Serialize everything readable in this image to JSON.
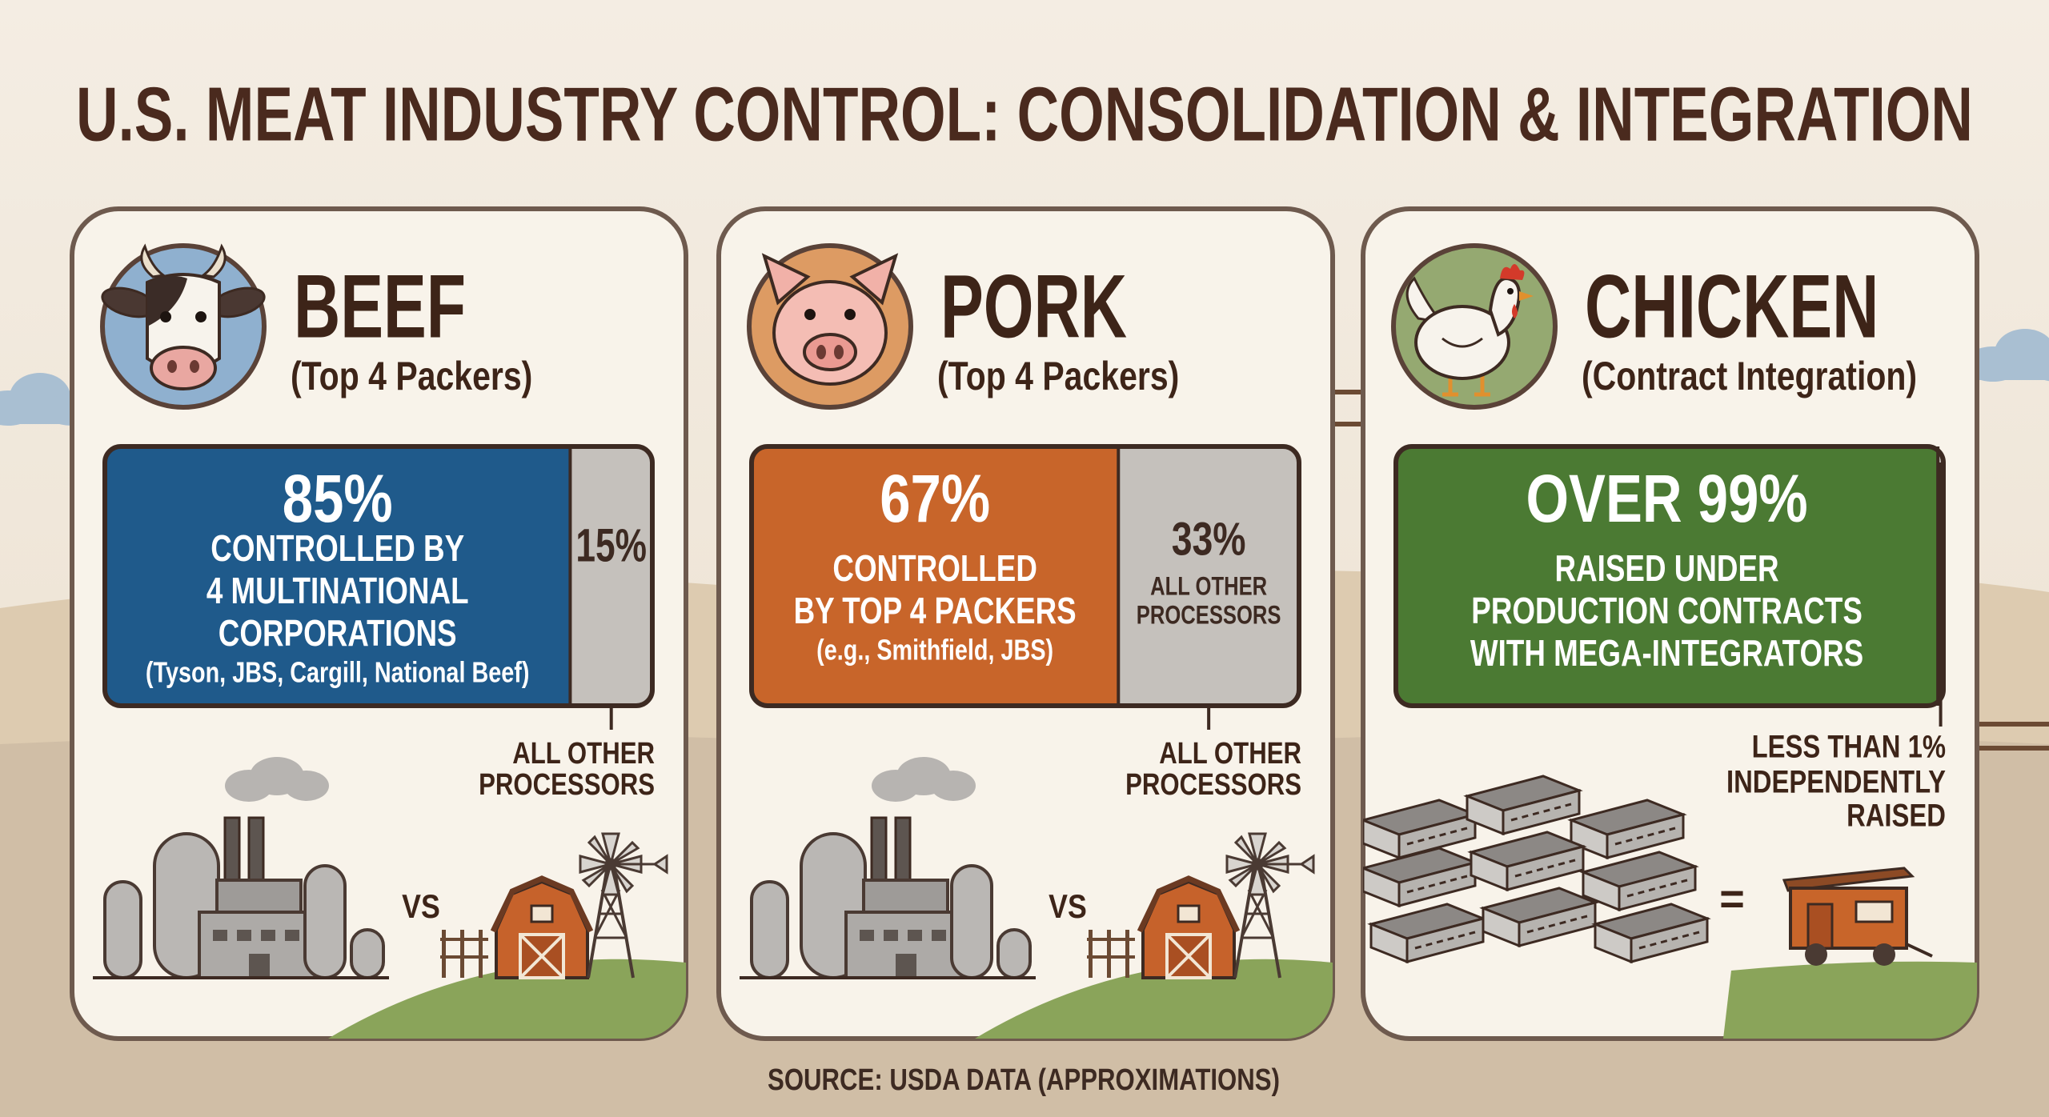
{
  "title": "U.S. MEAT INDUSTRY CONTROL: CONSOLIDATION & INTEGRATION",
  "panels": [
    {
      "heading": "BEEF",
      "subheading": "(Top 4 Packers)",
      "values": [
        85,
        15
      ],
      "value_labels": [
        "85%",
        "15%"
      ],
      "colors": [
        "#1f5a8b",
        "#c5c1bc"
      ],
      "description": [
        "CONTROLLED BY",
        "4 MULTINATIONAL",
        "CORPORATIONS"
      ],
      "note": "(Tyson, JBS, Cargill, National Beef)",
      "other_label": [
        "ALL OTHER",
        "PROCESSORS"
      ],
      "comparison": "VS"
    },
    {
      "heading": "PORK",
      "subheading": "(Top 4 Packers)",
      "values": [
        67,
        33
      ],
      "value_labels": [
        "67%",
        "33%"
      ],
      "colors": [
        "#c8652a",
        "#c5c1bc"
      ],
      "description": [
        "CONTROLLED",
        "BY TOP 4 PACKERS"
      ],
      "note": "(e.g., Smithfield, JBS)",
      "other_inner": [
        "ALL OTHER",
        "PROCESSORS"
      ],
      "other_label": [
        "ALL OTHER",
        "PROCESSORS"
      ],
      "comparison": "VS"
    },
    {
      "heading": "CHICKEN",
      "subheading": "(Contract Integration)",
      "values": [
        99,
        1
      ],
      "value_labels": [
        "OVER 99%",
        "LESS THAN 1%"
      ],
      "colors": [
        "#4b7a33",
        "#c5c1bc"
      ],
      "description": [
        "RAISED UNDER",
        "PRODUCTION CONTRACTS",
        "WITH MEGA-INTEGRATORS"
      ],
      "other_label": [
        "INDEPENDENTLY",
        "RAISED"
      ],
      "comparison": "="
    }
  ],
  "source": "SOURCE: USDA DATA (APPROXIMATIONS)"
}
